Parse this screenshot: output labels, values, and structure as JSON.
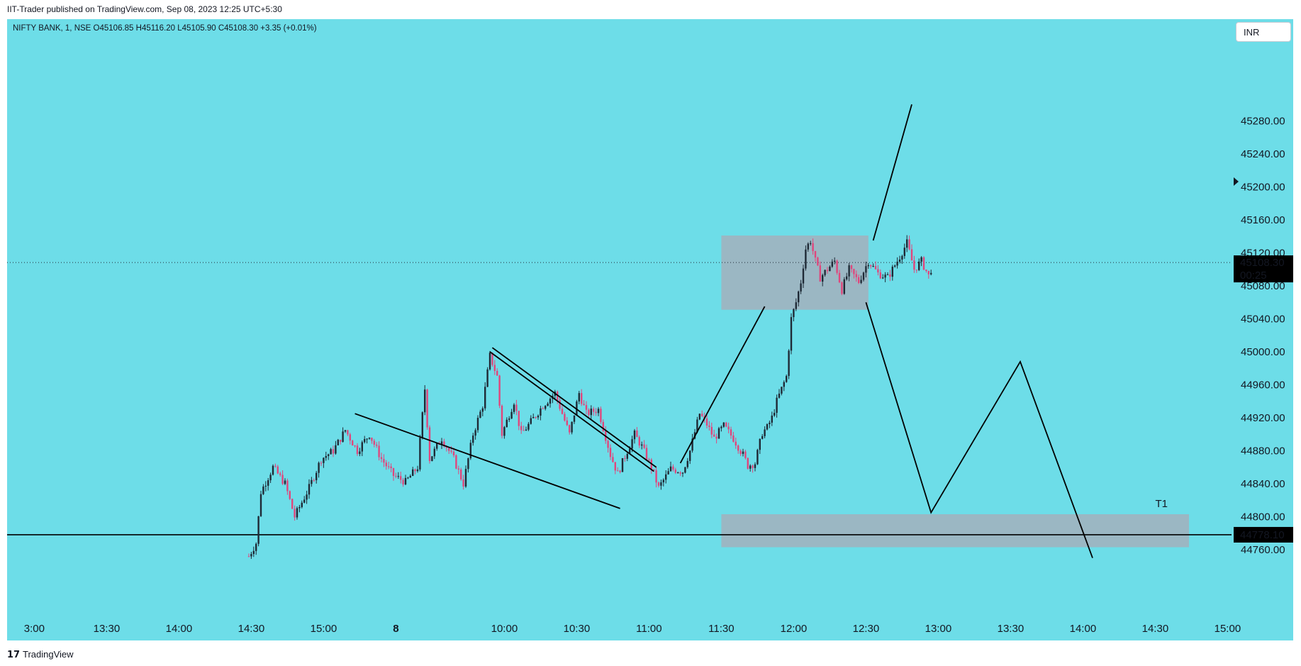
{
  "header": {
    "published_text": "IIT-Trader published on TradingView.com, Sep 08, 2023 12:25 UTC+5:30"
  },
  "symbol_info": "NIFTY BANK, 1, NSE  O45106.85  H45116.20  L45105.90  C45108.30  +3.35 (+0.01%)",
  "currency_button": "INR",
  "footer": {
    "logo_icon": "tradingview-logo-icon",
    "brand": "TradingView"
  },
  "colors": {
    "background": "#6ddde8",
    "up_candle": "#1f2a36",
    "down_candle": "#e0467c",
    "zone": "#a0b3bf"
  },
  "chart_data": {
    "type": "candlestick",
    "symbol": "NIFTY BANK",
    "interval": "1",
    "exchange": "NSE",
    "ylim": [
      44740,
      45330
    ],
    "y_ticks": [
      "45280.00",
      "45240.00",
      "45200.00",
      "45160.00",
      "45120.00",
      "45080.00",
      "45040.00",
      "45000.00",
      "44960.00",
      "44920.00",
      "44880.00",
      "44840.00",
      "44800.00",
      "44760.00"
    ],
    "y_tick_values": [
      45280,
      45240,
      45200,
      45160,
      45120,
      45080,
      45040,
      45000,
      44960,
      44920,
      44880,
      44840,
      44800,
      44760
    ],
    "x_ticks": [
      "3:00",
      "13:30",
      "14:00",
      "14:30",
      "15:00",
      "8",
      "10:00",
      "10:30",
      "11:00",
      "11:30",
      "12:00",
      "12:30",
      "13:00",
      "13:30",
      "14:00",
      "14:30",
      "15:00"
    ],
    "x_tick_bars": [
      -274,
      -244,
      -214,
      -184,
      -154,
      -124,
      -79,
      -49,
      -19,
      11,
      41,
      71,
      101,
      131,
      161,
      191,
      221
    ],
    "last_price": "45108.30",
    "last_price_value": 45108.3,
    "countdown": "00:25",
    "horizontal_line": "44778.10",
    "horizontal_line_value": 44778.1,
    "price_path": [
      [
        -185,
        44752
      ],
      [
        -182,
        44768
      ],
      [
        -180,
        44830
      ],
      [
        -175,
        44860
      ],
      [
        -170,
        44840
      ],
      [
        -166,
        44800
      ],
      [
        -160,
        44835
      ],
      [
        -155,
        44870
      ],
      [
        -150,
        44880
      ],
      [
        -145,
        44905
      ],
      [
        -140,
        44880
      ],
      [
        -135,
        44900
      ],
      [
        -130,
        44870
      ],
      [
        -125,
        44850
      ],
      [
        -120,
        44842
      ],
      [
        -115,
        44860
      ],
      [
        -112,
        44955
      ],
      [
        -110,
        44870
      ],
      [
        -105,
        44895
      ],
      [
        -100,
        44870
      ],
      [
        -96,
        44840
      ],
      [
        -92,
        44900
      ],
      [
        -88,
        44935
      ],
      [
        -85,
        44995
      ],
      [
        -82,
        44970
      ],
      [
        -80,
        44900
      ],
      [
        -75,
        44940
      ],
      [
        -72,
        44900
      ],
      [
        -68,
        44915
      ],
      [
        -63,
        44935
      ],
      [
        -58,
        44950
      ],
      [
        -52,
        44900
      ],
      [
        -48,
        44950
      ],
      [
        -45,
        44925
      ],
      [
        -40,
        44930
      ],
      [
        -35,
        44875
      ],
      [
        -32,
        44852
      ],
      [
        -28,
        44880
      ],
      [
        -25,
        44900
      ],
      [
        -22,
        44885
      ],
      [
        -18,
        44860
      ],
      [
        -15,
        44835
      ],
      [
        -10,
        44858
      ],
      [
        -5,
        44855
      ],
      [
        -2,
        44880
      ],
      [
        2,
        44925
      ],
      [
        5,
        44912
      ],
      [
        8,
        44895
      ],
      [
        12,
        44910
      ],
      [
        16,
        44895
      ],
      [
        20,
        44875
      ],
      [
        22,
        44862
      ],
      [
        25,
        44865
      ],
      [
        28,
        44902
      ],
      [
        30,
        44908
      ],
      [
        32,
        44920
      ],
      [
        34,
        44940
      ],
      [
        36,
        44955
      ],
      [
        38,
        44970
      ],
      [
        40,
        45040
      ],
      [
        42,
        45060
      ],
      [
        44,
        45085
      ],
      [
        46,
        45125
      ],
      [
        48,
        45135
      ],
      [
        50,
        45110
      ],
      [
        52,
        45090
      ],
      [
        55,
        45100
      ],
      [
        58,
        45110
      ],
      [
        61,
        45075
      ],
      [
        64,
        45100
      ],
      [
        68,
        45085
      ],
      [
        72,
        45110
      ],
      [
        76,
        45095
      ],
      [
        80,
        45090
      ],
      [
        84,
        45110
      ],
      [
        88,
        45132
      ],
      [
        91,
        45100
      ],
      [
        94,
        45110
      ],
      [
        97,
        45092
      ],
      [
        99,
        45108.3
      ]
    ],
    "drawings": {
      "consolidation_box": {
        "x1": 11,
        "x2": 72,
        "y1": 45051,
        "y2": 45141
      },
      "target_zone": {
        "label": "T1",
        "x1": 11,
        "x2": 205,
        "y1": 44763,
        "y2": 44803
      },
      "lines": [
        {
          "name": "channel-upper-line-1",
          "points": [
            [
              -84,
              45005
            ],
            [
              -16,
              44860
            ]
          ]
        },
        {
          "name": "channel-upper-line-2",
          "points": [
            [
              -85,
              45000
            ],
            [
              -17,
              44855
            ]
          ]
        },
        {
          "name": "channel-lower-line",
          "points": [
            [
              -141,
              44925
            ],
            [
              -31,
              44810
            ]
          ]
        },
        {
          "name": "breakout-line",
          "points": [
            [
              -6,
              44865
            ],
            [
              29,
              45055
            ]
          ]
        },
        {
          "name": "projection-up-line",
          "points": [
            [
              74,
              45135
            ],
            [
              90,
              45300
            ]
          ]
        },
        {
          "name": "projection-zigzag-line",
          "points": [
            [
              71,
              45060
            ],
            [
              98,
              44805
            ],
            [
              135,
              44988
            ],
            [
              165,
              44750
            ]
          ]
        }
      ]
    }
  }
}
